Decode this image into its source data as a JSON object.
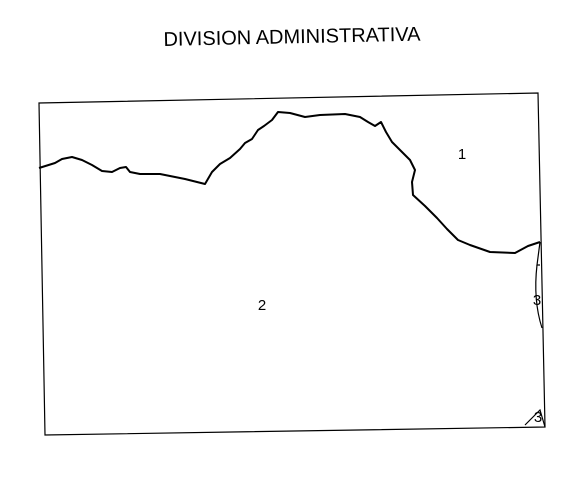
{
  "title": "DIVISION ADMINISTRATIVA",
  "regions": [
    {
      "label": "1"
    },
    {
      "label": "2"
    },
    {
      "label": "3"
    },
    {
      "label": "3"
    }
  ]
}
